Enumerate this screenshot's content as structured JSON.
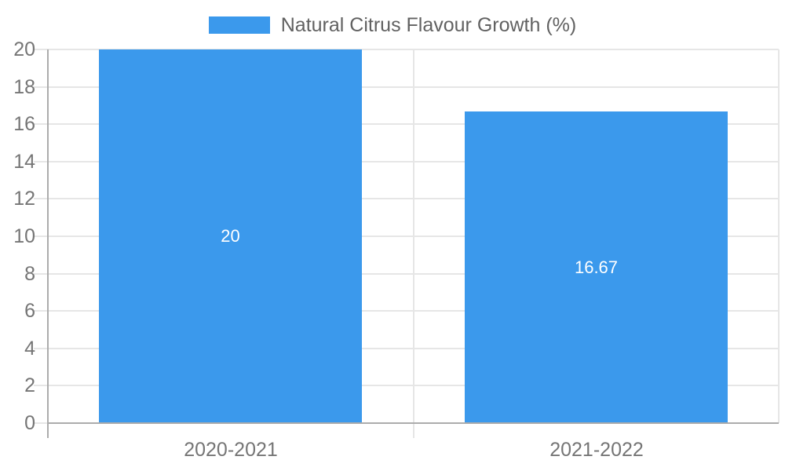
{
  "chart_data": {
    "type": "bar",
    "title": "Natural Citrus Flavour Growth (%)",
    "legend_entries": [
      "Natural Citrus Flavour Growth (%)"
    ],
    "legend_position": "top-center",
    "categories": [
      "2020-2021",
      "2021-2022"
    ],
    "values": [
      20,
      16.67
    ],
    "value_labels": [
      "20",
      "16.67"
    ],
    "xlabel": "",
    "ylabel": "",
    "ylim": [
      0,
      20
    ],
    "ytick_step": 2,
    "ytick_labels": [
      "0",
      "2",
      "4",
      "6",
      "8",
      "10",
      "12",
      "14",
      "16",
      "18",
      "20"
    ],
    "grid": true,
    "colors": {
      "bar": "#3B99EC",
      "gridline": "#E6E6E6",
      "axis": "#ACACAC",
      "tick_label": "#757575",
      "legend_text": "#616161",
      "value_label": "#FFFFFF",
      "background": "#FFFFFF"
    }
  }
}
